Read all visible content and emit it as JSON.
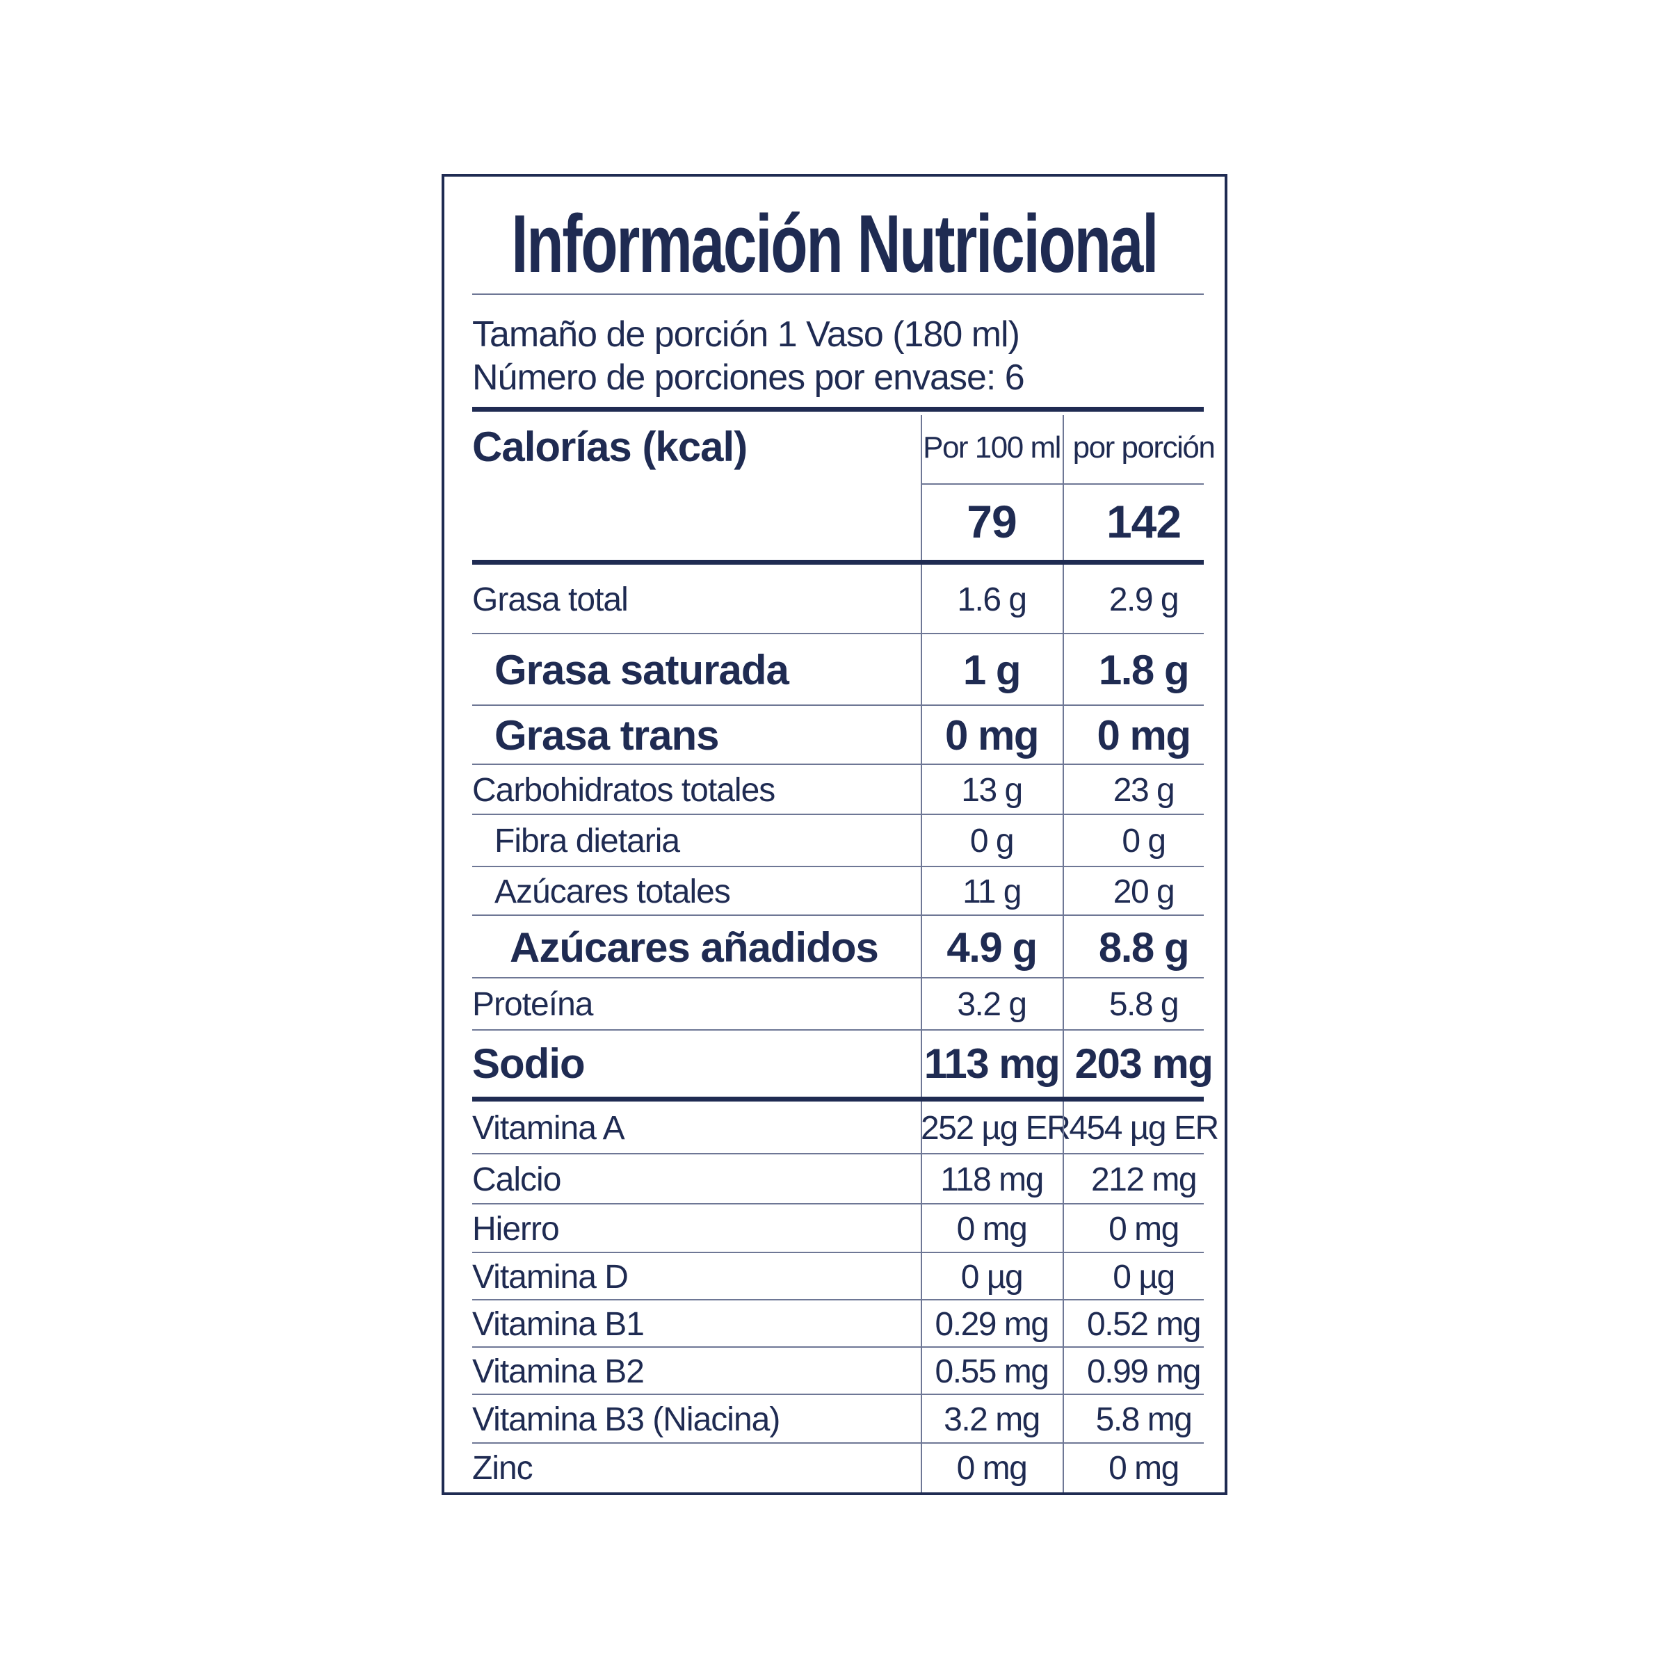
{
  "label": {
    "title": "Información Nutricional",
    "serving": {
      "size_line": "Tamaño de porción 1 Vaso (180 ml)",
      "count_line": "Número de porciones por envase: 6"
    },
    "columns": {
      "per_100ml_header": "Por 100 ml",
      "per_portion_header": "por porción"
    },
    "calories": {
      "name": "Calorías (kcal)",
      "per_100ml": "79",
      "per_portion": "142"
    },
    "nutrients": [
      {
        "label": "Grasa total",
        "per_100ml": "1.6 g",
        "per_portion": "2.9 g",
        "emphasis": false,
        "indent": 0,
        "thick_after": false
      },
      {
        "label": "Grasa saturada",
        "per_100ml": "1 g",
        "per_portion": "1.8 g",
        "emphasis": true,
        "indent": 1,
        "thick_after": false
      },
      {
        "label": "Grasa trans",
        "per_100ml": "0 mg",
        "per_portion": "0 mg",
        "emphasis": true,
        "indent": 1,
        "thick_after": false
      },
      {
        "label": "Carbohidratos totales",
        "per_100ml": "13 g",
        "per_portion": "23 g",
        "emphasis": false,
        "indent": 0,
        "thick_after": false
      },
      {
        "label": "Fibra dietaria",
        "per_100ml": "0 g",
        "per_portion": "0 g",
        "emphasis": false,
        "indent": 1,
        "thick_after": false
      },
      {
        "label": "Azúcares totales",
        "per_100ml": "11 g",
        "per_portion": "20 g",
        "emphasis": false,
        "indent": 1,
        "thick_after": false
      },
      {
        "label": "Azúcares añadidos",
        "per_100ml": "4.9 g",
        "per_portion": "8.8 g",
        "emphasis": true,
        "indent": 2,
        "thick_after": false
      },
      {
        "label": "Proteína",
        "per_100ml": "3.2 g",
        "per_portion": "5.8 g",
        "emphasis": false,
        "indent": 0,
        "thick_after": false
      },
      {
        "label": "Sodio",
        "per_100ml": "113 mg",
        "per_portion": "203 mg",
        "emphasis": true,
        "indent": 0,
        "thick_after": true
      },
      {
        "label": "Vitamina A",
        "per_100ml": "252 µg ER",
        "per_portion": "454 µg ER",
        "emphasis": false,
        "indent": 0,
        "thick_after": false
      },
      {
        "label": "Calcio",
        "per_100ml": "118 mg",
        "per_portion": "212 mg",
        "emphasis": false,
        "indent": 0,
        "thick_after": false
      },
      {
        "label": "Hierro",
        "per_100ml": "0 mg",
        "per_portion": "0 mg",
        "emphasis": false,
        "indent": 0,
        "thick_after": false
      },
      {
        "label": "Vitamina D",
        "per_100ml": "0 µg",
        "per_portion": "0 µg",
        "emphasis": false,
        "indent": 0,
        "thick_after": false
      },
      {
        "label": "Vitamina B1",
        "per_100ml": "0.29 mg",
        "per_portion": "0.52 mg",
        "emphasis": false,
        "indent": 0,
        "thick_after": false
      },
      {
        "label": "Vitamina B2",
        "per_100ml": "0.55 mg",
        "per_portion": "0.99 mg",
        "emphasis": false,
        "indent": 0,
        "thick_after": false
      },
      {
        "label": "Vitamina B3 (Niacina)",
        "per_100ml": "3.2 mg",
        "per_portion": "5.8 mg",
        "emphasis": false,
        "indent": 0,
        "thick_after": false
      },
      {
        "label": "Zinc",
        "per_100ml": "0 mg",
        "per_portion": "0 mg",
        "emphasis": false,
        "indent": 0,
        "thick_after": false
      }
    ],
    "colors": {
      "ink": "#1f2b52",
      "hairline": "#6e7795",
      "background": "#ffffff"
    }
  }
}
